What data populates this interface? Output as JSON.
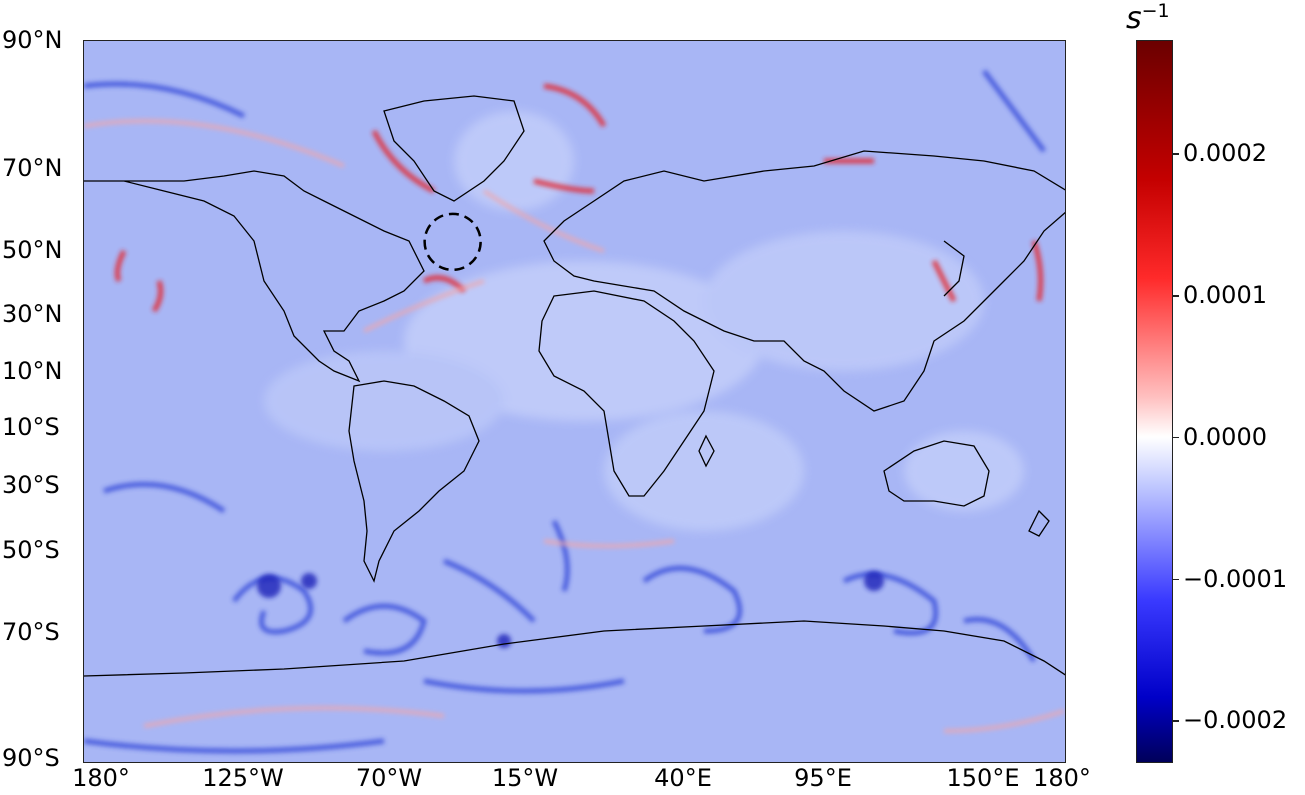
{
  "map": {
    "type": "heatmap",
    "variable_field": "diverging vorticity-like field",
    "lat_labels": [
      "90°N",
      "70°N",
      "50°N",
      "30°N",
      "10°N",
      "10°S",
      "30°S",
      "50°S",
      "70°S",
      "90°S"
    ],
    "lon_labels": [
      "180°",
      "125°W",
      "70°W",
      "15°W",
      "40°E",
      "95°E",
      "150°E",
      "180°"
    ],
    "lat_range": [
      -90,
      90
    ],
    "lon_range": [
      -180,
      180
    ],
    "highlight_circle": {
      "lon": -45,
      "lat": 40,
      "style": "dashed"
    },
    "background_color": "#a9b8f6"
  },
  "colorbar": {
    "unit": "s",
    "unit_exponent": "−1",
    "colormap": "seismic",
    "range": [
      -0.00023,
      0.00028
    ],
    "ticks": [
      {
        "value": 0.0002,
        "label": "0.0002"
      },
      {
        "value": 0.0001,
        "label": "0.0001"
      },
      {
        "value": 0.0,
        "label": "0.0000"
      },
      {
        "value": -0.0001,
        "label": "−0.0001"
      },
      {
        "value": -0.0002,
        "label": "−0.0002"
      }
    ]
  }
}
